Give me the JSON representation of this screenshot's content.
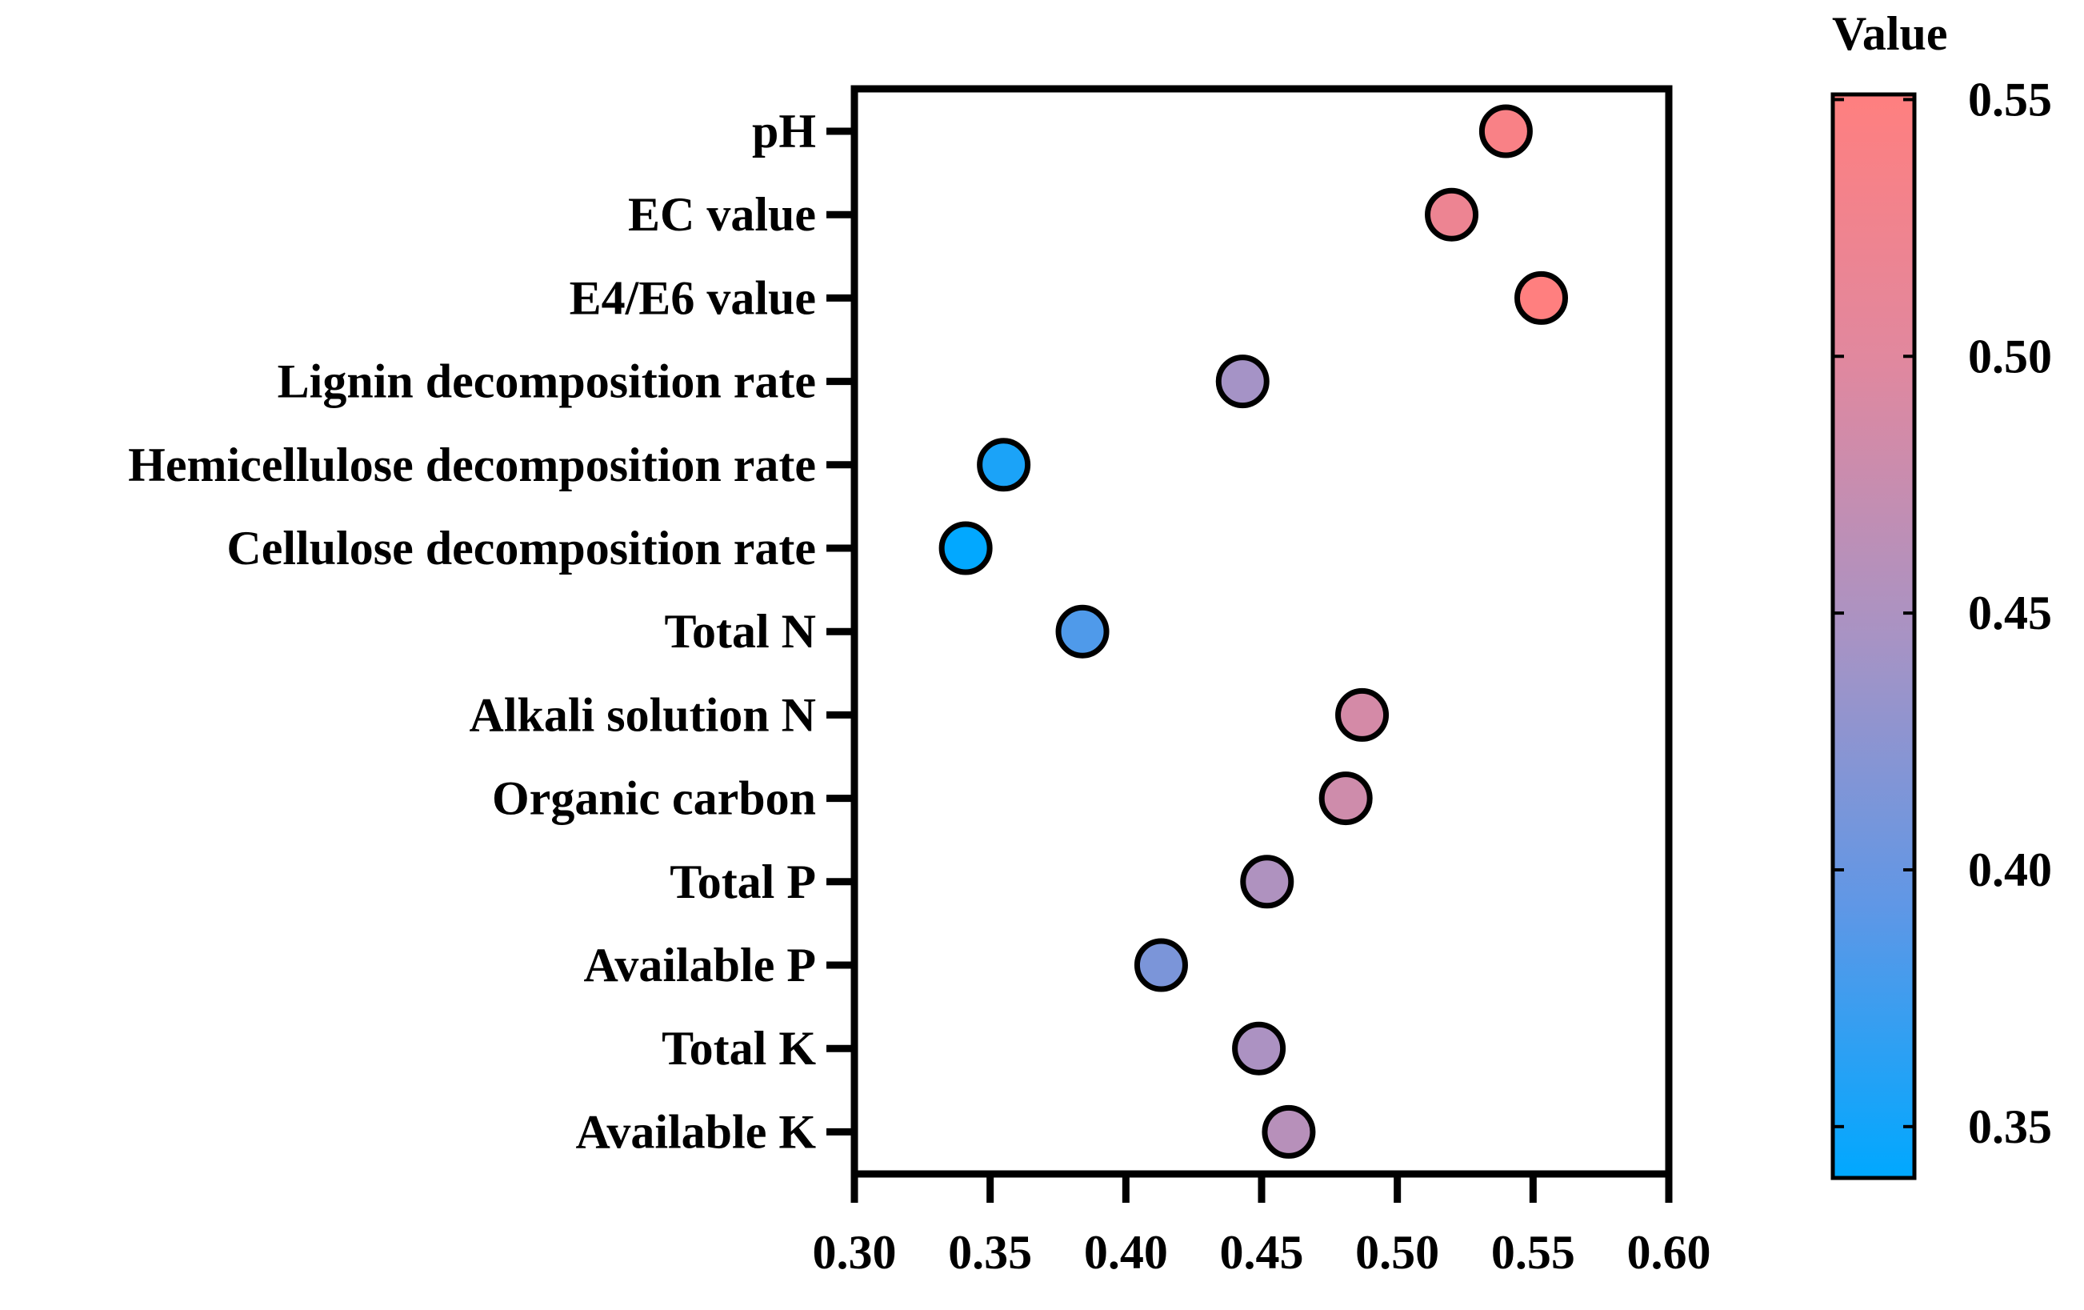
{
  "chart_data": {
    "type": "scatter",
    "title": "",
    "xlabel": "",
    "ylabel": "",
    "xlim": [
      0.3,
      0.6
    ],
    "x_ticks": [
      "0.30",
      "0.35",
      "0.40",
      "0.45",
      "0.50",
      "0.55",
      "0.60"
    ],
    "grid": false,
    "categories": [
      "pH",
      "EC value",
      "E4/E6 value",
      "Lignin decomposition rate",
      "Hemicellulose decomposition rate",
      "Cellulose decomposition rate",
      "Total N",
      "Alkali solution N",
      "Organic carbon",
      "Total P",
      "Available P",
      "Total K",
      "Available K"
    ],
    "values": [
      0.54,
      0.52,
      0.553,
      0.443,
      0.355,
      0.341,
      0.384,
      0.487,
      0.481,
      0.452,
      0.413,
      0.449,
      0.46
    ],
    "colorbar": {
      "title": "Value",
      "range": [
        0.34,
        0.551
      ],
      "ticks": [
        "0.35",
        "0.40",
        "0.45",
        "0.50",
        "0.55"
      ],
      "low_color": "#00a8ff",
      "mid_color": "#a893c4",
      "high_color": "#ff7f7f"
    }
  }
}
